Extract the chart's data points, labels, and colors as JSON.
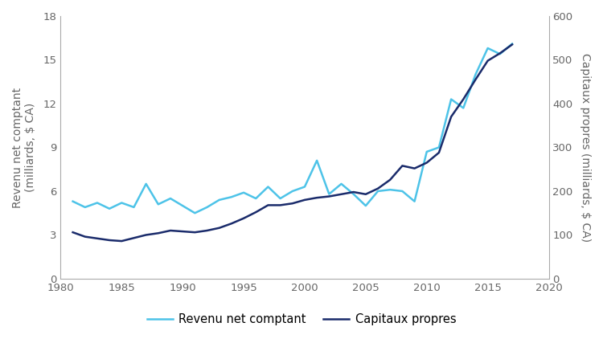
{
  "title": "",
  "xlabel": "",
  "ylabel_left": "Revenu net comptant\n(milliards, $ CA)",
  "ylabel_right": "Capitaux propres (milliards, $ CA)",
  "legend_labels": [
    "Revenu net comptant",
    "Capitaux propres"
  ],
  "line1_color": "#4DC3E8",
  "line2_color": "#1A2B6B",
  "background_color": "#ffffff",
  "xlim": [
    1980,
    2020
  ],
  "ylim_left": [
    0,
    18
  ],
  "ylim_right": [
    0,
    600
  ],
  "yticks_left": [
    0,
    3,
    6,
    9,
    12,
    15,
    18
  ],
  "yticks_right": [
    0,
    100,
    200,
    300,
    400,
    500,
    600
  ],
  "xticks": [
    1980,
    1985,
    1990,
    1995,
    2000,
    2005,
    2010,
    2015,
    2020
  ],
  "years": [
    1981,
    1982,
    1983,
    1984,
    1985,
    1986,
    1987,
    1988,
    1989,
    1990,
    1991,
    1992,
    1993,
    1994,
    1995,
    1996,
    1997,
    1998,
    1999,
    2000,
    2001,
    2002,
    2003,
    2004,
    2005,
    2006,
    2007,
    2008,
    2009,
    2010,
    2011,
    2012,
    2013,
    2014,
    2015,
    2016,
    2017
  ],
  "revenu_net": [
    5.3,
    4.9,
    5.2,
    4.8,
    5.2,
    4.9,
    6.5,
    5.1,
    5.5,
    5.0,
    4.5,
    4.9,
    5.4,
    5.6,
    5.9,
    5.5,
    6.3,
    5.5,
    6.0,
    6.3,
    8.1,
    5.8,
    6.5,
    5.8,
    5.0,
    6.0,
    6.1,
    6.0,
    5.3,
    8.7,
    9.0,
    12.3,
    11.7,
    14.0,
    15.8,
    15.4,
    16.1
  ],
  "capitaux_propres": [
    106,
    96,
    92,
    88,
    86,
    93,
    100,
    104,
    110,
    108,
    106,
    110,
    116,
    126,
    138,
    152,
    168,
    168,
    172,
    180,
    185,
    188,
    193,
    198,
    193,
    206,
    226,
    258,
    252,
    265,
    288,
    370,
    410,
    455,
    498,
    515,
    535
  ]
}
